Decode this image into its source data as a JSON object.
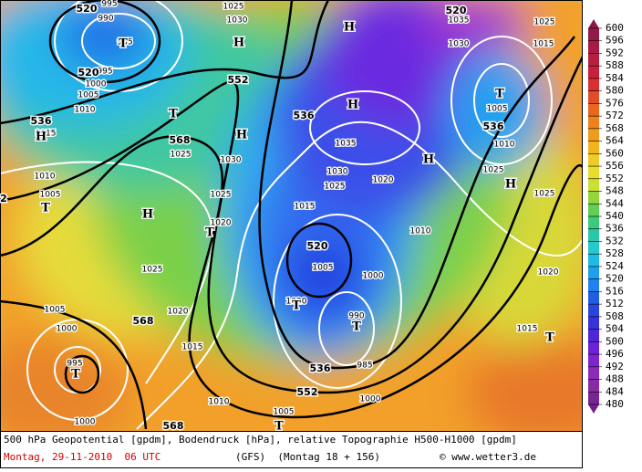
{
  "map": {
    "colorbar": {
      "ticks": [
        600,
        596,
        592,
        588,
        584,
        580,
        576,
        572,
        568,
        564,
        560,
        556,
        552,
        548,
        544,
        540,
        536,
        532,
        528,
        524,
        520,
        516,
        512,
        508,
        504,
        500,
        496,
        492,
        488,
        484,
        480
      ]
    },
    "geopotential_labels": [
      520,
      520,
      536,
      568,
      552,
      536,
      520,
      568,
      536,
      552,
      568,
      520,
      536,
      2
    ],
    "pressure_labels": [
      995,
      990,
      985,
      995,
      1000,
      1005,
      1010,
      1015,
      1025,
      1030,
      1035,
      1030,
      1025,
      1015,
      1005,
      1010,
      1025,
      1025,
      1035,
      1030,
      1025,
      1020,
      1015,
      1010,
      1005,
      1000,
      1020,
      990,
      985,
      1000,
      1010,
      1005,
      1000,
      1005,
      1000,
      995,
      1015,
      1020,
      1025,
      1025,
      1030,
      1025,
      1020,
      1010,
      1005,
      1020,
      1015
    ],
    "highs": [
      "H",
      "H",
      "H",
      "H",
      "H",
      "H",
      "H",
      "H"
    ],
    "lows": [
      "T",
      "T",
      "T",
      "T",
      "T",
      "T",
      "T",
      "T",
      "T",
      "T"
    ]
  },
  "footer": {
    "line1": "500 hPa Geopotential [gpdm], Bodendruck [hPa], relative Topographie H500-H1000 [gpdm]",
    "date": "Montag, 29-11-2010  06 UTC",
    "model": "(GFS)  (Montag 18 + 156)",
    "copyright": "© www.wetter3.de"
  }
}
